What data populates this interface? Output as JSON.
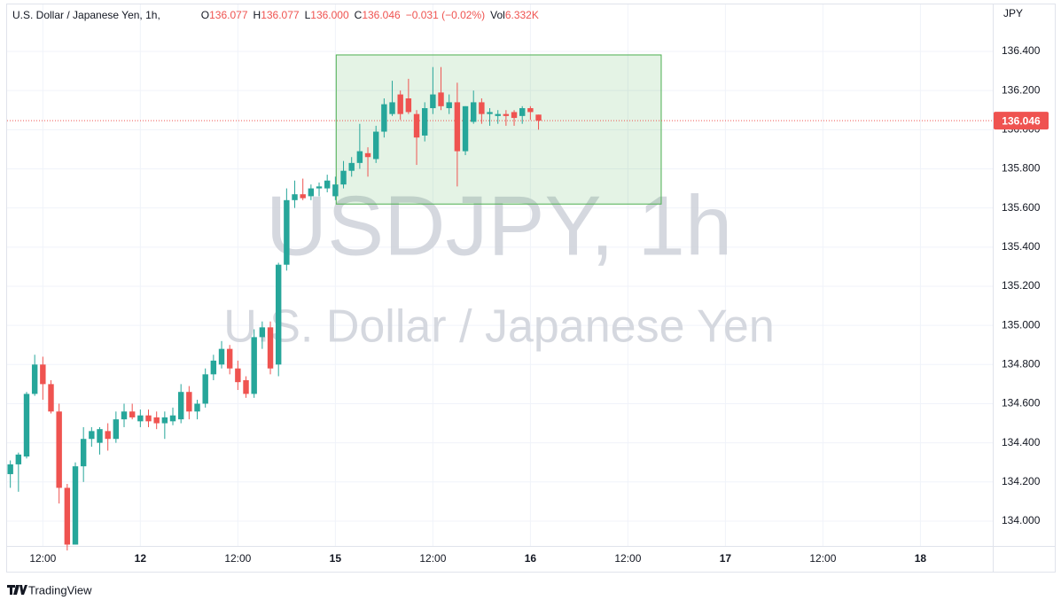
{
  "chart_data": {
    "type": "candlestick",
    "title": "U.S. Dollar / Japanese Yen, 1h,",
    "legend": [
      {
        "key": "O",
        "text": "136.077"
      },
      {
        "key": "H",
        "text": "136.077"
      },
      {
        "key": "L",
        "text": "136.000"
      },
      {
        "key": "C",
        "text": "136.046"
      },
      {
        "key": "",
        "text": "−0.031 (−0.02%)"
      },
      {
        "key": "Vol",
        "text": "6.332K"
      }
    ],
    "watermark": [
      "USDJPY, 1h",
      "U.S. Dollar / Japanese Yen"
    ],
    "y_unit": "JPY",
    "branding": "TradingView",
    "up_color": "#26a69a",
    "down_color": "#ef5350",
    "x": [
      -16,
      -15,
      -14,
      -13,
      -12,
      -11,
      -10,
      -9,
      -8,
      -7,
      -6,
      -5,
      -4,
      -3,
      -2,
      -1,
      0,
      1,
      2,
      3,
      4,
      5,
      6,
      7,
      8,
      9,
      10,
      11,
      12,
      13,
      14,
      15,
      16,
      17,
      18,
      19,
      20,
      21,
      22,
      23,
      24,
      25,
      26,
      27,
      28,
      29,
      30,
      31,
      32,
      33,
      34,
      35,
      36,
      37,
      38,
      39,
      40,
      41,
      42,
      43,
      44,
      45,
      46,
      47,
      48,
      49
    ],
    "open": [
      134.24,
      134.29,
      134.33,
      134.65,
      134.8,
      134.7,
      134.56,
      134.17,
      133.88,
      134.28,
      134.42,
      134.4,
      134.46,
      134.42,
      134.52,
      134.56,
      134.51,
      134.54,
      134.53,
      134.5,
      134.51,
      134.52,
      134.66,
      134.56,
      134.6,
      134.75,
      134.8,
      134.88,
      134.78,
      134.72,
      134.65,
      134.94,
      134.99,
      134.8,
      135.31,
      135.64,
      135.67,
      135.66,
      135.7,
      135.7,
      135.66,
      135.72,
      135.79,
      135.83,
      135.88,
      135.85,
      135.99,
      136.08,
      136.18,
      136.16,
      136.08,
      135.97,
      136.11,
      136.19,
      136.11,
      136.14,
      135.89,
      136.04,
      136.14,
      136.08,
      136.07,
      136.08,
      136.09,
      136.07,
      136.11,
      136.077
    ],
    "high": [
      134.31,
      134.35,
      134.66,
      134.85,
      134.84,
      134.72,
      134.6,
      134.19,
      134.3,
      134.48,
      134.48,
      134.48,
      134.5,
      134.56,
      134.6,
      134.6,
      134.57,
      134.57,
      134.56,
      134.56,
      134.58,
      134.7,
      134.69,
      134.62,
      134.78,
      134.85,
      134.92,
      134.9,
      134.82,
      134.74,
      134.98,
      135.02,
      135.02,
      135.32,
      135.7,
      135.74,
      135.75,
      135.72,
      135.73,
      135.77,
      135.76,
      135.84,
      135.86,
      136.03,
      135.91,
      136.02,
      136.16,
      136.25,
      136.2,
      136.26,
      136.1,
      136.14,
      136.32,
      136.32,
      136.18,
      136.24,
      136.12,
      136.2,
      136.16,
      136.11,
      136.1,
      136.1,
      136.1,
      136.12,
      136.12,
      136.077
    ],
    "low": [
      134.17,
      134.15,
      134.32,
      134.64,
      134.62,
      134.55,
      134.09,
      133.85,
      133.88,
      134.2,
      134.38,
      134.34,
      134.36,
      134.4,
      134.48,
      134.52,
      134.48,
      134.48,
      134.47,
      134.42,
      134.49,
      134.5,
      134.52,
      134.52,
      134.58,
      134.72,
      134.78,
      134.75,
      134.67,
      134.63,
      134.63,
      134.88,
      134.75,
      134.74,
      135.28,
      135.6,
      135.64,
      135.64,
      135.66,
      135.68,
      135.64,
      135.7,
      135.76,
      135.8,
      135.76,
      135.83,
      135.96,
      136.07,
      136.05,
      136.08,
      135.82,
      135.94,
      136.08,
      136.1,
      136.08,
      135.71,
      135.87,
      136.03,
      136.03,
      136.02,
      136.03,
      136.02,
      136.02,
      136.03,
      136.05,
      136.0
    ],
    "close": [
      134.29,
      134.34,
      134.65,
      134.8,
      134.7,
      134.56,
      134.17,
      133.88,
      134.28,
      134.42,
      134.46,
      134.47,
      134.42,
      134.52,
      134.56,
      134.53,
      134.54,
      134.51,
      134.5,
      134.53,
      134.54,
      134.66,
      134.56,
      134.6,
      134.75,
      134.82,
      134.88,
      134.78,
      134.71,
      134.65,
      134.94,
      134.99,
      134.78,
      135.31,
      135.64,
      135.67,
      135.65,
      135.7,
      135.71,
      135.74,
      135.72,
      135.79,
      135.83,
      135.89,
      135.86,
      135.99,
      136.13,
      136.14,
      136.08,
      136.09,
      135.96,
      136.11,
      136.18,
      136.12,
      136.14,
      135.89,
      136.12,
      136.14,
      136.08,
      136.09,
      136.08,
      136.07,
      136.06,
      136.11,
      136.09,
      136.046
    ],
    "xlim": [
      -16.4,
      104.9
    ],
    "xticks": [
      {
        "value": -12,
        "label": "12:00"
      },
      {
        "value": 0,
        "label": "12"
      },
      {
        "value": 12,
        "label": "12:00"
      },
      {
        "value": 24,
        "label": "15"
      },
      {
        "value": 36,
        "label": "12:00"
      },
      {
        "value": 48,
        "label": "16"
      },
      {
        "value": 60,
        "label": "12:00"
      },
      {
        "value": 72,
        "label": "17"
      },
      {
        "value": 84,
        "label": "12:00"
      },
      {
        "value": 96,
        "label": "18"
      }
    ],
    "ylim": [
      133.873,
      136.64
    ],
    "yticks": [
      {
        "value": 134,
        "label": "134.000"
      },
      {
        "value": 134.2,
        "label": "134.200"
      },
      {
        "value": 134.4,
        "label": "134.400"
      },
      {
        "value": 134.6,
        "label": "134.600"
      },
      {
        "value": 134.8,
        "label": "134.800"
      },
      {
        "value": 135,
        "label": "135.000"
      },
      {
        "value": 135.2,
        "label": "135.200"
      },
      {
        "value": 135.4,
        "label": "135.400"
      },
      {
        "value": 135.6,
        "label": "135.600"
      },
      {
        "value": 135.8,
        "label": "135.800"
      },
      {
        "value": 136,
        "label": "136.000"
      },
      {
        "value": 136.2,
        "label": "136.200"
      },
      {
        "value": 136.4,
        "label": "136.400"
      }
    ],
    "grid": true,
    "current_price": {
      "value": 136.046,
      "label": "136.046"
    },
    "rectangle": {
      "x": [
        24.1,
        64.1
      ],
      "y": [
        135.62,
        136.382
      ],
      "color": "#4caf50"
    }
  }
}
